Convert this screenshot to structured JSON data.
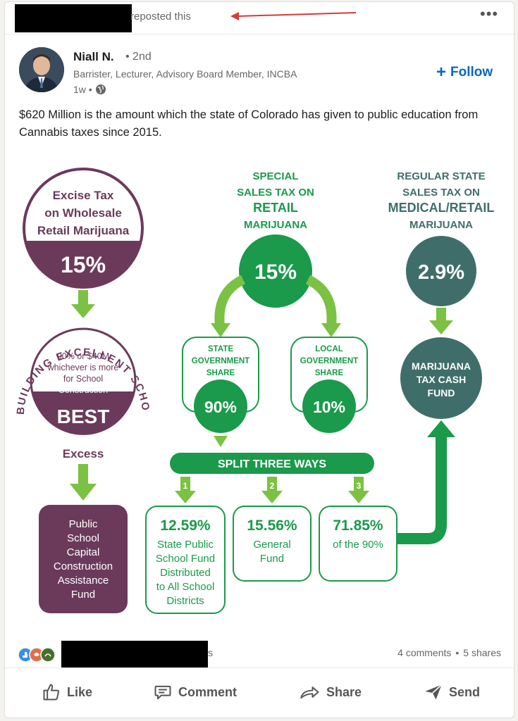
{
  "repost": {
    "text": "reposted this"
  },
  "author": {
    "name": "Niall N.",
    "degree": "• 2nd",
    "headline": "Barrister, Lecturer, Advisory Board Member, INCBA",
    "time": "1w •"
  },
  "follow_label": "Follow",
  "post_text": "$620 Million is the amount which the state of Colorado has given to public education from Cannabis taxes since 2015.",
  "infographic": {
    "excise": {
      "line1": "Excise Tax",
      "line2": "on Wholesale",
      "line3": "Retail Marijuana",
      "rate": "15%"
    },
    "best": {
      "arc": "BUILDING EXCELLENT SCHOOLS TODAY",
      "line1": "90% or $40M",
      "line2": "whichever is more",
      "line3": "for School",
      "line4": "Construction",
      "label": "BEST"
    },
    "excess": "Excess",
    "capital_fund": {
      "line1": "Public",
      "line2": "School",
      "line3": "Capital",
      "line4": "Construction",
      "line5": "Assistance",
      "line6": "Fund"
    },
    "special": {
      "line1": "SPECIAL",
      "line2": "SALES TAX ON",
      "line3": "RETAIL",
      "line4": "MARIJUANA",
      "rate": "15%"
    },
    "state_share": {
      "line1": "STATE",
      "line2": "GOVERNMENT",
      "line3": "SHARE",
      "rate": "90%"
    },
    "local_share": {
      "line1": "LOCAL",
      "line2": "GOVERNMENT",
      "line3": "SHARE",
      "rate": "10%"
    },
    "regular": {
      "line1": "REGULAR STATE",
      "line2": "SALES TAX ON",
      "line3": "MEDICAL/RETAIL",
      "line4": "MARIJUANA",
      "rate": "2.9%"
    },
    "cash_fund": {
      "line1": "MARIJUANA",
      "line2": "TAX CASH",
      "line3": "FUND"
    },
    "split": "SPLIT THREE WAYS",
    "splits": [
      {
        "num": "1",
        "pct": "12.59%",
        "lines": [
          "State Public",
          "School Fund",
          "Distributed",
          "to All School",
          "Districts"
        ]
      },
      {
        "num": "2",
        "pct": "15.56%",
        "lines": [
          "General",
          "Fund"
        ]
      },
      {
        "num": "3",
        "pct": "71.85%",
        "lines": [
          "of the 90%"
        ]
      }
    ]
  },
  "social": {
    "comments": "4 comments",
    "separator": "•",
    "shares": "5 shares",
    "trailing": "s"
  },
  "actions": {
    "like": "Like",
    "comment": "Comment",
    "share": "Share",
    "send": "Send"
  },
  "colors": {
    "purple": "#6b3a5b",
    "green": "#1a9a4a",
    "light_green": "#7bc143",
    "teal": "#3f6e6a",
    "accent_blue": "#0a66c2"
  }
}
